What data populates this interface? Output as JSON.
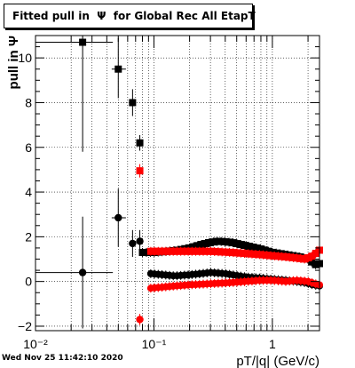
{
  "chart_data": {
    "type": "scatter",
    "title": "Fitted pull in  Ψ  for Global Rec All EtapT",
    "xlabel": "pT/|q| (GeV/c)",
    "ylabel": "pull in Ψ",
    "xscale": "log",
    "xlim": [
      0.01,
      2.5
    ],
    "ylim": [
      -2.2,
      11.0
    ],
    "grid": true,
    "x_ticks": [
      {
        "value": 0.01,
        "label": "10⁻²"
      },
      {
        "value": 0.1,
        "label": "10⁻¹"
      },
      {
        "value": 1,
        "label": "1"
      }
    ],
    "y_ticks": [
      -2,
      0,
      2,
      4,
      6,
      8,
      10
    ],
    "series": [
      {
        "color": "#000000",
        "marker": "square",
        "points": [
          {
            "x": 0.025,
            "y": 10.7,
            "xerr": [
              0.015,
              0.02
            ],
            "yerr": [
              4.9,
              4.3
            ]
          },
          {
            "x": 0.05,
            "y": 9.5,
            "xerr": [
              0.006,
              0.008
            ],
            "yerr": [
              1.3,
              1.4
            ]
          },
          {
            "x": 0.066,
            "y": 8.0,
            "xerr": [
              0.003,
              0.004
            ],
            "yerr": [
              0.6,
              0.6
            ]
          },
          {
            "x": 0.076,
            "y": 6.2,
            "xerr": [
              0.003,
              0.003
            ],
            "yerr": [
              0.35,
              0.35
            ]
          }
        ],
        "curve": [
          [
            0.08,
            1.3
          ],
          [
            0.1,
            1.3
          ],
          [
            0.13,
            1.35
          ],
          [
            0.16,
            1.4
          ],
          [
            0.2,
            1.5
          ],
          [
            0.25,
            1.65
          ],
          [
            0.3,
            1.75
          ],
          [
            0.35,
            1.8
          ],
          [
            0.45,
            1.75
          ],
          [
            0.6,
            1.6
          ],
          [
            0.8,
            1.45
          ],
          [
            1.0,
            1.3
          ],
          [
            1.3,
            1.2
          ],
          [
            1.7,
            1.1
          ],
          [
            2.0,
            1.0
          ],
          [
            2.3,
            0.75
          ],
          [
            2.5,
            0.8
          ]
        ]
      },
      {
        "color": "#ff0000",
        "marker": "square",
        "points": [
          {
            "x": 0.076,
            "y": 4.95,
            "xerr": [
              0.003,
              0.003
            ],
            "yerr": [
              0.3,
              0.3
            ]
          }
        ],
        "curve": [
          [
            0.094,
            1.35
          ],
          [
            0.12,
            1.35
          ],
          [
            0.15,
            1.35
          ],
          [
            0.2,
            1.35
          ],
          [
            0.3,
            1.35
          ],
          [
            0.45,
            1.3
          ],
          [
            0.6,
            1.25
          ],
          [
            0.8,
            1.2
          ],
          [
            1.0,
            1.15
          ],
          [
            1.3,
            1.1
          ],
          [
            1.6,
            1.05
          ],
          [
            1.9,
            1.0
          ],
          [
            2.2,
            1.15
          ],
          [
            2.5,
            1.4
          ]
        ]
      },
      {
        "color": "#000000",
        "marker": "circle",
        "points": [
          {
            "x": 0.025,
            "y": 0.4,
            "xerr": [
              0.015,
              0.02
            ],
            "yerr": [
              2.5,
              2.5
            ]
          },
          {
            "x": 0.05,
            "y": 2.85,
            "xerr": [
              0.006,
              0.008
            ],
            "yerr": [
              1.3,
              1.3
            ]
          },
          {
            "x": 0.066,
            "y": 1.7,
            "xerr": [
              0.003,
              0.004
            ],
            "yerr": [
              0.6,
              0.6
            ]
          },
          {
            "x": 0.076,
            "y": 1.8,
            "xerr": [
              0.003,
              0.003
            ],
            "yerr": [
              0.5,
              0.5
            ]
          }
        ],
        "curve": [
          [
            0.094,
            0.35
          ],
          [
            0.12,
            0.3
          ],
          [
            0.15,
            0.25
          ],
          [
            0.2,
            0.3
          ],
          [
            0.25,
            0.35
          ],
          [
            0.3,
            0.4
          ],
          [
            0.4,
            0.35
          ],
          [
            0.6,
            0.2
          ],
          [
            0.8,
            0.15
          ],
          [
            1.0,
            0.1
          ],
          [
            1.3,
            0.05
          ],
          [
            1.6,
            0.0
          ],
          [
            1.9,
            -0.05
          ],
          [
            2.2,
            -0.15
          ],
          [
            2.5,
            -0.2
          ]
        ]
      },
      {
        "color": "#ff0000",
        "marker": "circle",
        "points": [
          {
            "x": 0.076,
            "y": -1.7,
            "xerr": [
              0.003,
              0.003
            ],
            "yerr": [
              0.25,
              0.25
            ]
          }
        ],
        "curve": [
          [
            0.094,
            -0.3
          ],
          [
            0.12,
            -0.25
          ],
          [
            0.15,
            -0.2
          ],
          [
            0.2,
            -0.15
          ],
          [
            0.3,
            -0.1
          ],
          [
            0.45,
            -0.05
          ],
          [
            0.6,
            0.0
          ],
          [
            0.8,
            0.05
          ],
          [
            1.0,
            0.05
          ],
          [
            1.3,
            0.0
          ],
          [
            1.6,
            0.05
          ],
          [
            2.0,
            0.0
          ],
          [
            2.3,
            -0.1
          ],
          [
            2.5,
            -0.15
          ]
        ]
      }
    ]
  },
  "footer": {
    "timestamp": "Wed Nov 25 11:42:10 2020"
  }
}
